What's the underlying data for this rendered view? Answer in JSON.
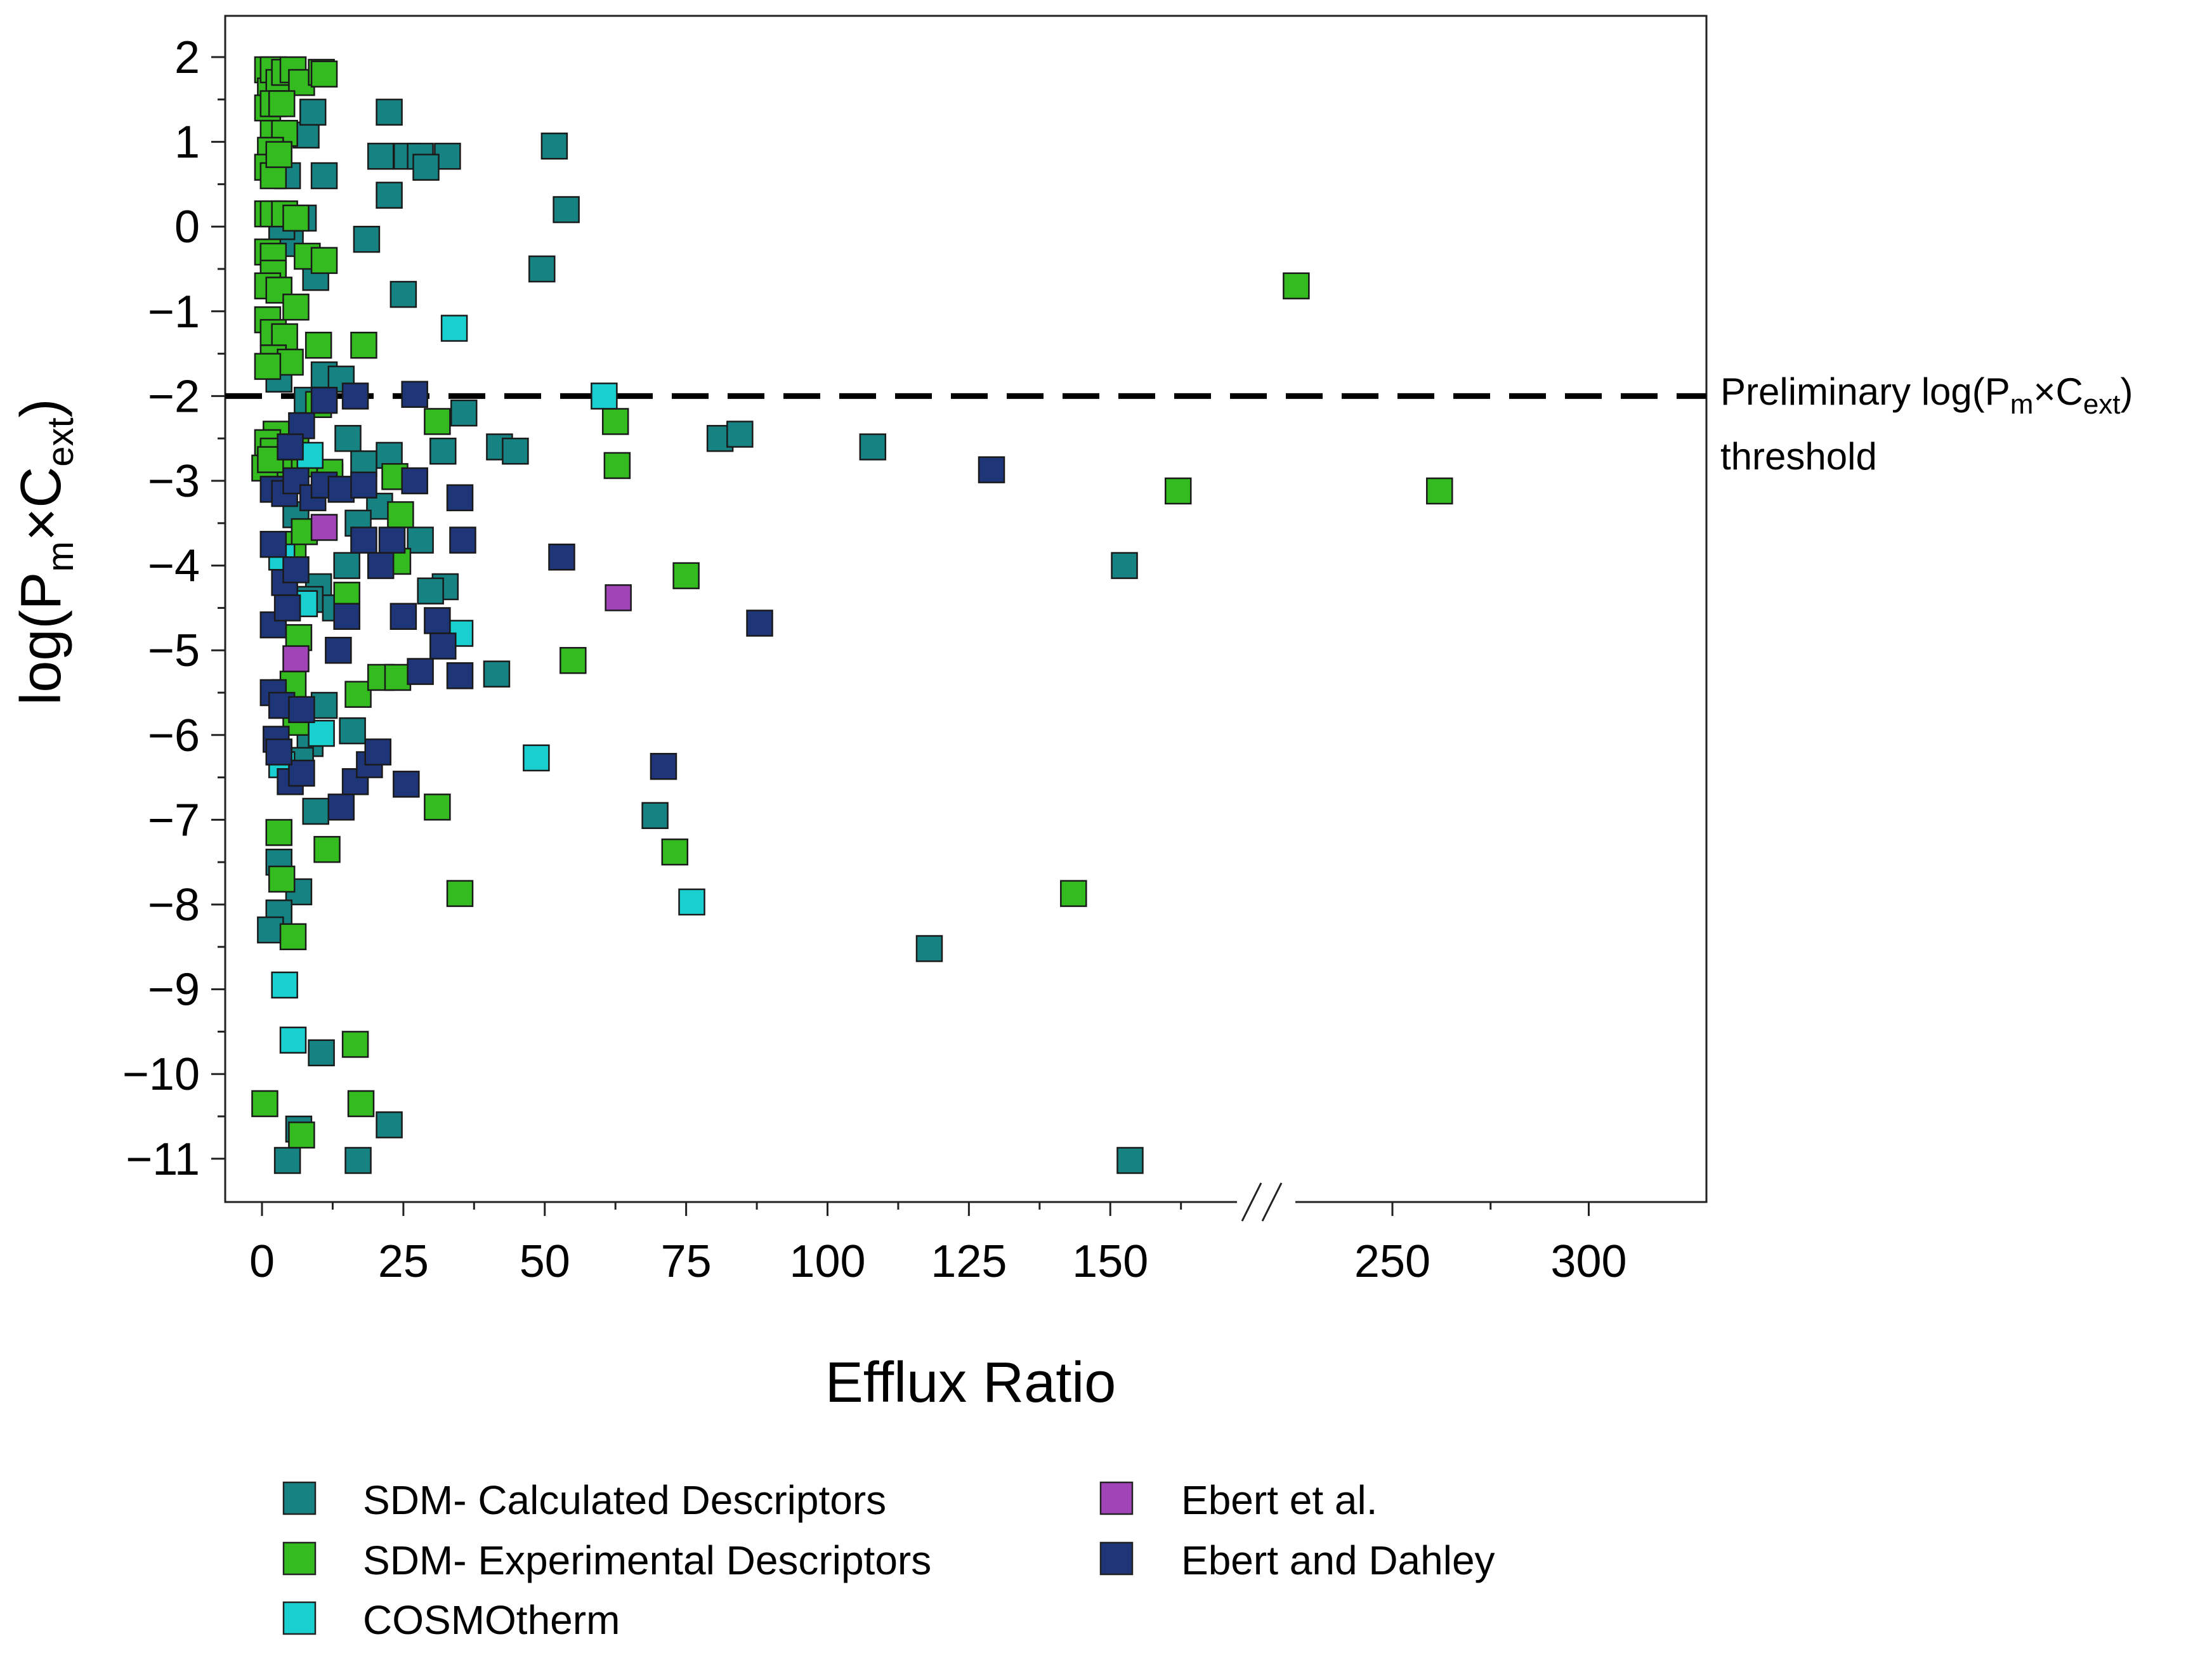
{
  "chart_data": {
    "type": "scatter",
    "title": "",
    "xlabel": "Efflux Ratio",
    "ylabel": {
      "prefix": "log(P",
      "sub1": "m",
      "mid": "×C",
      "sub2": "ext",
      "suffix": ")"
    },
    "x_axis_break": {
      "between": [
        165,
        215
      ]
    },
    "x_ticks": [
      {
        "value": 0,
        "label": "0"
      },
      {
        "value": 25,
        "label": "25"
      },
      {
        "value": 50,
        "label": "50"
      },
      {
        "value": 75,
        "label": "75"
      },
      {
        "value": 100,
        "label": "100"
      },
      {
        "value": 125,
        "label": "125"
      },
      {
        "value": 150,
        "label": "150"
      },
      {
        "value": 250,
        "label": "250"
      },
      {
        "value": 300,
        "label": "300"
      }
    ],
    "y_ticks": [
      {
        "value": 2,
        "label": "2"
      },
      {
        "value": 1,
        "label": "1"
      },
      {
        "value": 0,
        "label": "0"
      },
      {
        "value": -1,
        "label": "−1"
      },
      {
        "value": -2,
        "label": "−2"
      },
      {
        "value": -3,
        "label": "−3"
      },
      {
        "value": -4,
        "label": "−4"
      },
      {
        "value": -5,
        "label": "−5"
      },
      {
        "value": -6,
        "label": "−6"
      },
      {
        "value": -7,
        "label": "−7"
      },
      {
        "value": -8,
        "label": "−8"
      },
      {
        "value": -9,
        "label": "−9"
      },
      {
        "value": -10,
        "label": "−10"
      },
      {
        "value": -11,
        "label": "−11"
      }
    ],
    "ylim": [
      -11.5,
      2.5
    ],
    "threshold": {
      "y": -2,
      "label_line1": {
        "prefix": "Preliminary log(P",
        "sub1": "m",
        "mid": "×C",
        "sub2": "ext",
        "suffix": ")"
      },
      "label_line2": "threshold"
    },
    "series": [
      {
        "name": "SDM- Calculated Descriptors",
        "color": "#168282",
        "points": [
          [
            22.5,
            1.35
          ],
          [
            51.7,
            0.95
          ],
          [
            53.8,
            0.2
          ],
          [
            21,
            0.83
          ],
          [
            25.6,
            0.83
          ],
          [
            28,
            0.83
          ],
          [
            32.8,
            0.83
          ],
          [
            29,
            0.7
          ],
          [
            22.5,
            0.37
          ],
          [
            4.5,
            0.6
          ],
          [
            11,
            0.6
          ],
          [
            7.8,
            1.08
          ],
          [
            9,
            1.35
          ],
          [
            18.5,
            -0.15
          ],
          [
            49.5,
            -0.5
          ],
          [
            25,
            -0.8
          ],
          [
            5,
            -0.2
          ],
          [
            7.3,
            0.1
          ],
          [
            3.5,
            0
          ],
          [
            9.5,
            -0.6
          ],
          [
            3,
            -1.8
          ],
          [
            11,
            -1.75
          ],
          [
            14,
            -1.8
          ],
          [
            8,
            -2.05
          ],
          [
            35.7,
            -2.2
          ],
          [
            42,
            -2.6
          ],
          [
            44.8,
            -2.65
          ],
          [
            32,
            -2.65
          ],
          [
            81,
            -2.5
          ],
          [
            84.5,
            -2.45
          ],
          [
            108,
            -2.6
          ],
          [
            22.5,
            -2.7
          ],
          [
            18,
            -2.8
          ],
          [
            12,
            -2.95
          ],
          [
            15.2,
            -2.5
          ],
          [
            28,
            -3.7
          ],
          [
            32.4,
            -4.25
          ],
          [
            29.8,
            -4.3
          ],
          [
            20.8,
            -3.3
          ],
          [
            17,
            -3.5
          ],
          [
            15,
            -4
          ],
          [
            10,
            -4.25
          ],
          [
            13,
            -4.5
          ],
          [
            8.5,
            -4.4
          ],
          [
            6,
            -3.4
          ],
          [
            5,
            -3.8
          ],
          [
            41.5,
            -5.28
          ],
          [
            152.5,
            -4
          ],
          [
            11,
            -5.65
          ],
          [
            16,
            -5.95
          ],
          [
            8.5,
            -6.1
          ],
          [
            4,
            -5.5
          ],
          [
            6.8,
            -6.3
          ],
          [
            9.5,
            -6.9
          ],
          [
            69.5,
            -6.95
          ],
          [
            3,
            -7.5
          ],
          [
            6.5,
            -7.85
          ],
          [
            3,
            -8.1
          ],
          [
            1.5,
            -8.3
          ],
          [
            118,
            -8.52
          ],
          [
            10.5,
            -9.75
          ],
          [
            22.5,
            -10.6
          ],
          [
            6.5,
            -10.65
          ],
          [
            4.5,
            -11.02
          ],
          [
            17,
            -11.02
          ],
          [
            153.5,
            -11.02
          ]
        ]
      },
      {
        "name": "SDM- Experimental Descriptors",
        "color": "#33bb1f",
        "points": [
          [
            1,
            1.85
          ],
          [
            1.5,
            1.6
          ],
          [
            2,
            1.85
          ],
          [
            3,
            1.7
          ],
          [
            4,
            1.82
          ],
          [
            5.5,
            1.85
          ],
          [
            7,
            1.7
          ],
          [
            10.5,
            1.82
          ],
          [
            11,
            1.8
          ],
          [
            1,
            1.4
          ],
          [
            2,
            1.45
          ],
          [
            3.5,
            1.45
          ],
          [
            2,
            1.1
          ],
          [
            4,
            1.1
          ],
          [
            1.5,
            0.9
          ],
          [
            1,
            0.7
          ],
          [
            2,
            0.6
          ],
          [
            3,
            0.85
          ],
          [
            1,
            0.15
          ],
          [
            2,
            0.15
          ],
          [
            4,
            0.15
          ],
          [
            6,
            0.1
          ],
          [
            1,
            -0.3
          ],
          [
            2,
            -0.35
          ],
          [
            8,
            -0.35
          ],
          [
            11,
            -0.4
          ],
          [
            2,
            -0.55
          ],
          [
            1,
            -0.7
          ],
          [
            3,
            -0.75
          ],
          [
            6,
            -0.95
          ],
          [
            1,
            -1.1
          ],
          [
            2,
            -1.25
          ],
          [
            4,
            -1.3
          ],
          [
            10,
            -1.4
          ],
          [
            18,
            -1.4
          ],
          [
            2,
            -1.55
          ],
          [
            5,
            -1.6
          ],
          [
            1,
            -1.65
          ],
          [
            2.5,
            -2.45
          ],
          [
            10,
            -2.1
          ],
          [
            1,
            -2.55
          ],
          [
            2,
            -2.65
          ],
          [
            6,
            -2.6
          ],
          [
            3.5,
            -2.9
          ],
          [
            0.5,
            -2.85
          ],
          [
            1.5,
            -2.75
          ],
          [
            7.5,
            -2.8
          ],
          [
            12,
            -2.9
          ],
          [
            31,
            -2.3
          ],
          [
            62.5,
            -2.3
          ],
          [
            62.8,
            -2.82
          ],
          [
            23.5,
            -2.95
          ],
          [
            162,
            -3.12
          ],
          [
            262,
            -3.12
          ],
          [
            24.5,
            -3.4
          ],
          [
            5.5,
            -3.75
          ],
          [
            7.5,
            -3.6
          ],
          [
            24,
            -3.95
          ],
          [
            75,
            -4.12
          ],
          [
            15,
            -4.35
          ],
          [
            6.5,
            -4.85
          ],
          [
            55,
            -5.12
          ],
          [
            5.5,
            -5.4
          ],
          [
            17,
            -5.52
          ],
          [
            21,
            -5.32
          ],
          [
            24,
            -5.32
          ],
          [
            6,
            -5.85
          ],
          [
            31,
            -6.85
          ],
          [
            3,
            -7.15
          ],
          [
            11.5,
            -7.35
          ],
          [
            73,
            -7.38
          ],
          [
            35,
            -7.87
          ],
          [
            143.5,
            -7.87
          ],
          [
            3.5,
            -7.7
          ],
          [
            5.5,
            -8.38
          ],
          [
            16.5,
            -9.65
          ],
          [
            0.5,
            -10.35
          ],
          [
            17.5,
            -10.35
          ],
          [
            7,
            -10.72
          ],
          [
            225.5,
            -0.7
          ]
        ]
      },
      {
        "name": "COSMOtherm",
        "color": "#19cfcf",
        "points": [
          [
            34,
            -1.2
          ],
          [
            60.5,
            -2
          ],
          [
            8.5,
            -2.7
          ],
          [
            3.5,
            -3.9
          ],
          [
            7.5,
            -4.45
          ],
          [
            35,
            -4.8
          ],
          [
            10.5,
            -5.98
          ],
          [
            48.5,
            -6.27
          ],
          [
            3.5,
            -6.35
          ],
          [
            76,
            -7.97
          ],
          [
            4,
            -8.95
          ],
          [
            5.5,
            -9.6
          ]
        ]
      },
      {
        "name": "Ebert et al.",
        "color": "#a044b8",
        "points": [
          [
            63,
            -4.38
          ],
          [
            11,
            -3.55
          ],
          [
            6,
            -5.1
          ]
        ]
      },
      {
        "name": "Ebert and Dahley",
        "color": "#1e3578",
        "points": [
          [
            27,
            -1.98
          ],
          [
            16.5,
            -2
          ],
          [
            11,
            -2.05
          ],
          [
            7,
            -2.35
          ],
          [
            5,
            -2.6
          ],
          [
            2,
            -3.1
          ],
          [
            4,
            -3.15
          ],
          [
            6,
            -3
          ],
          [
            9,
            -3.2
          ],
          [
            11,
            -3.05
          ],
          [
            14,
            -3.1
          ],
          [
            18,
            -3.05
          ],
          [
            27,
            -3
          ],
          [
            35,
            -3.2
          ],
          [
            129,
            -2.87
          ],
          [
            35.5,
            -3.7
          ],
          [
            18,
            -3.7
          ],
          [
            21,
            -4
          ],
          [
            23,
            -3.7
          ],
          [
            53,
            -3.9
          ],
          [
            2,
            -3.75
          ],
          [
            4,
            -4.2
          ],
          [
            6,
            -4.05
          ],
          [
            2,
            -4.7
          ],
          [
            4.5,
            -4.5
          ],
          [
            15,
            -4.6
          ],
          [
            25,
            -4.6
          ],
          [
            31,
            -4.65
          ],
          [
            88,
            -4.68
          ],
          [
            13.5,
            -5
          ],
          [
            32,
            -4.95
          ],
          [
            28,
            -5.25
          ],
          [
            35,
            -5.3
          ],
          [
            2,
            -5.5
          ],
          [
            3.5,
            -5.65
          ],
          [
            7,
            -5.7
          ],
          [
            2.5,
            -6.05
          ],
          [
            5,
            -6.55
          ],
          [
            7,
            -6.45
          ],
          [
            14,
            -6.85
          ],
          [
            16.5,
            -6.55
          ],
          [
            19,
            -6.35
          ],
          [
            20.5,
            -6.2
          ],
          [
            25.5,
            -6.58
          ],
          [
            71,
            -6.37
          ],
          [
            3,
            -6.2
          ]
        ]
      }
    ],
    "legend": {
      "placement": "bottom",
      "entries": [
        {
          "label": "SDM- Calculated Descriptors",
          "color": "#168282"
        },
        {
          "label": "SDM- Experimental Descriptors",
          "color": "#33bb1f"
        },
        {
          "label": "COSMOtherm",
          "color": "#19cfcf"
        },
        {
          "label": "Ebert et al.",
          "color": "#a044b8"
        },
        {
          "label": "Ebert and Dahley",
          "color": "#1e3578"
        }
      ]
    }
  }
}
